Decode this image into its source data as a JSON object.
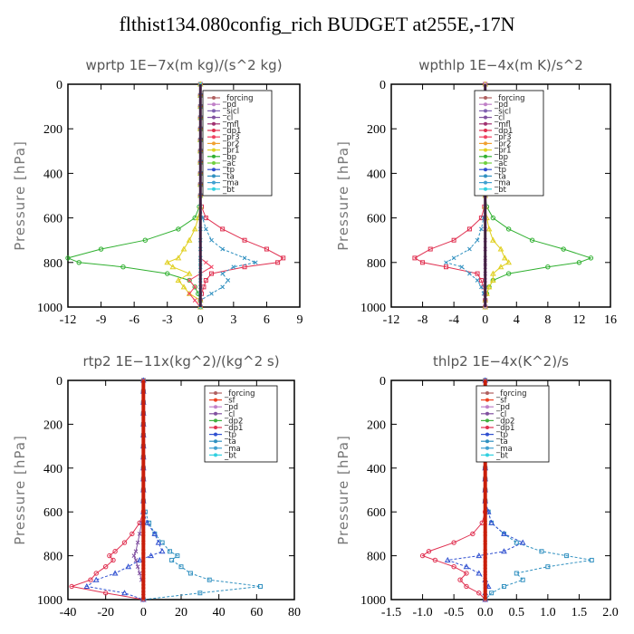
{
  "title": "flthist134.080config_rich  BUDGET at255E,-17N",
  "colors": {
    "_forcing": "#b06060",
    "_pd": "#c080c8",
    "_sicl": "#8060b0",
    "_cl": "#8050a0",
    "_mfl": "#a03070",
    "_dp1": "#e03050",
    "_pr3": "#f04060",
    "_pr2": "#f0a030",
    "_pr1": "#e0d020",
    "_bp": "#30b030",
    "_ac": "#70d040",
    "_tp": "#3050d0",
    "_ta": "#3090c0",
    "_ma": "#40a0d0",
    "_bt": "#30d0e0",
    "_sf": "#f04020",
    "_dp2": "#40b040"
  },
  "chart_data": [
    {
      "type": "line",
      "panel": "wprtp",
      "title": "wprtp   1E−7x(m kg)/(s^2 kg)",
      "ylabel": "Pressure [hPa]",
      "xlim": [
        -12,
        9
      ],
      "xticks": [
        "-12",
        "-9",
        "-6",
        "-3",
        "0",
        "3",
        "6",
        "9"
      ],
      "ylim": [
        1000,
        0
      ],
      "yticks": [
        "0",
        "200",
        "400",
        "600",
        "800",
        "1000"
      ],
      "legend": [
        "_forcing",
        "_pd",
        "_sicl",
        "_cl",
        "_mfl",
        "_dp1",
        "_pr3",
        "_pr2",
        "_pr1",
        "_bp",
        "_ac",
        "_tp",
        "_ta",
        "_ma",
        "_bt"
      ],
      "y": [
        0,
        50,
        100,
        150,
        200,
        250,
        300,
        350,
        400,
        450,
        500,
        550,
        600,
        650,
        700,
        740,
        780,
        800,
        820,
        850,
        880,
        910,
        940,
        970,
        1000
      ],
      "series": [
        {
          "name": "_bp",
          "values": [
            0,
            0,
            0,
            0,
            0,
            0,
            0,
            0,
            0,
            0,
            0,
            -0.1,
            -0.5,
            -2,
            -5,
            -9,
            -12,
            -11,
            -7,
            -3,
            -1,
            -0.5,
            -0.2,
            0,
            0
          ]
        },
        {
          "name": "_dp1",
          "values": [
            0,
            0,
            0,
            0,
            0,
            0,
            0,
            0,
            0,
            0,
            0,
            0.1,
            0.5,
            2,
            4,
            6,
            7.5,
            7,
            4,
            1,
            0.5,
            0.3,
            0.1,
            0,
            0
          ]
        },
        {
          "name": "_pr1",
          "values": [
            0,
            0,
            0,
            0,
            0,
            0,
            0,
            0,
            0,
            0,
            0,
            0,
            -0.2,
            -0.5,
            -1,
            -1.5,
            -2,
            -3,
            -2.5,
            -1,
            -2,
            -1.5,
            -1,
            0,
            0
          ]
        },
        {
          "name": "_ta",
          "values": [
            0,
            0,
            0,
            0,
            0,
            0,
            0,
            0,
            0,
            0,
            0,
            0,
            0.2,
            0.5,
            1,
            2,
            4,
            5,
            3,
            2,
            2.5,
            2,
            1,
            0,
            0
          ]
        },
        {
          "name": "_pr3",
          "values": [
            0,
            0,
            0,
            0,
            0,
            0,
            0,
            0,
            0,
            0,
            0,
            0,
            0,
            0,
            0,
            0,
            0,
            0.5,
            1,
            0,
            -1,
            -0.5,
            -1,
            -0.5,
            0
          ]
        },
        {
          "name": "_bt",
          "values": [
            0,
            0,
            0,
            0,
            0,
            0,
            0,
            0,
            0,
            0,
            0,
            0,
            0,
            0,
            0,
            0,
            0,
            0,
            0,
            0,
            0,
            0,
            0,
            0,
            0
          ]
        }
      ]
    },
    {
      "type": "line",
      "panel": "wpthlp",
      "title": "wpthlp   1E−4x(m K)/s^2",
      "ylabel": "Pressure [hPa]",
      "xlim": [
        -12,
        16
      ],
      "xticks": [
        "-12",
        "-8",
        "-4",
        "0",
        "4",
        "8",
        "12",
        "16"
      ],
      "ylim": [
        1000,
        0
      ],
      "yticks": [
        "0",
        "200",
        "400",
        "600",
        "800",
        "1000"
      ],
      "legend": [
        "_forcing",
        "_pd",
        "_sicl",
        "_cl",
        "_mfl",
        "_dp1",
        "_pr3",
        "_pr2",
        "_pr1",
        "_bp",
        "_ac",
        "_tp",
        "_ta",
        "_ma",
        "_bt"
      ],
      "y": [
        0,
        50,
        100,
        150,
        200,
        250,
        300,
        350,
        400,
        450,
        500,
        550,
        600,
        650,
        700,
        740,
        780,
        800,
        820,
        850,
        880,
        910,
        940,
        970,
        1000
      ],
      "series": [
        {
          "name": "_bp",
          "values": [
            0,
            0,
            0,
            0,
            0,
            0,
            0,
            0,
            0,
            0,
            0,
            0.2,
            1,
            3,
            6,
            10,
            13.5,
            12,
            8,
            3,
            1,
            0.5,
            0.2,
            0,
            0
          ]
        },
        {
          "name": "_dp1",
          "values": [
            0,
            0,
            0,
            0,
            0,
            0,
            0,
            0,
            0,
            0,
            0,
            -0.1,
            -0.5,
            -2,
            -4,
            -7,
            -9,
            -8,
            -5,
            -1,
            -0.5,
            -0.2,
            0,
            0,
            0
          ]
        },
        {
          "name": "_pr1",
          "values": [
            0,
            0,
            0,
            0,
            0,
            0,
            0,
            0,
            0,
            0,
            0,
            0,
            0.2,
            0.5,
            1,
            2,
            2.5,
            3,
            2,
            1,
            1,
            0.5,
            0.2,
            0,
            0
          ]
        },
        {
          "name": "_ta",
          "values": [
            0,
            0,
            0,
            0,
            0,
            0,
            0,
            0,
            0,
            0,
            0,
            0,
            -0.2,
            -0.5,
            -1,
            -2,
            -4,
            -5,
            -3,
            -2,
            -1,
            -0.5,
            -0.2,
            0,
            0
          ]
        },
        {
          "name": "_pd",
          "values": [
            0,
            0,
            0,
            0,
            0,
            0,
            0,
            0,
            0,
            0,
            0,
            0,
            0,
            0,
            0,
            0,
            0,
            0,
            0,
            0,
            0,
            0,
            0,
            0,
            0
          ]
        }
      ]
    },
    {
      "type": "line",
      "panel": "rtp2",
      "title": "rtp2   1E−11x(kg^2)/(kg^2 s)",
      "ylabel": "Pressure [hPa]",
      "xlim": [
        -40,
        80
      ],
      "xticks": [
        "-40",
        "-20",
        "0",
        "20",
        "40",
        "60",
        "80"
      ],
      "ylim": [
        1000,
        0
      ],
      "yticks": [
        "0",
        "200",
        "400",
        "600",
        "800",
        "1000"
      ],
      "legend": [
        "_forcing",
        "_sf",
        "_pd",
        "_cl",
        "_dp2",
        "_dp1",
        "_tp",
        "_ta",
        "_ma",
        "_bt"
      ],
      "y": [
        0,
        50,
        100,
        150,
        200,
        250,
        300,
        350,
        400,
        450,
        500,
        550,
        600,
        650,
        700,
        740,
        780,
        800,
        820,
        850,
        880,
        910,
        940,
        970,
        1000
      ],
      "series": [
        {
          "name": "_dp1",
          "values": [
            0,
            0,
            0,
            0,
            0,
            0,
            0,
            0,
            0,
            0,
            0,
            0,
            0,
            -2,
            -6,
            -10,
            -15,
            -18,
            -16,
            -20,
            -25,
            -28,
            -38,
            -20,
            0
          ]
        },
        {
          "name": "_ta",
          "values": [
            0,
            0,
            0,
            0,
            0,
            0,
            0,
            0,
            0,
            0,
            0,
            0,
            1,
            3,
            6,
            10,
            14,
            18,
            15,
            20,
            25,
            35,
            62,
            30,
            0
          ]
        },
        {
          "name": "_tp",
          "values": [
            0,
            0,
            0,
            0,
            0,
            0,
            0,
            0,
            0,
            0,
            0,
            0,
            0,
            2,
            6,
            8,
            10,
            4,
            -2,
            -8,
            -15,
            -25,
            -30,
            -10,
            0
          ]
        },
        {
          "name": "_cl",
          "values": [
            0,
            0,
            0,
            0,
            0,
            0,
            0,
            0,
            0,
            0,
            0,
            0,
            0,
            -1,
            -2,
            -3,
            -4,
            -5,
            -4,
            -3,
            -2,
            -1,
            0,
            0,
            0
          ]
        },
        {
          "name": "_sf",
          "values": [
            0,
            0,
            0,
            0,
            0,
            0,
            0,
            0,
            0,
            0,
            0,
            0,
            0,
            0,
            0,
            0,
            0,
            0,
            0,
            0,
            0,
            0,
            0,
            0,
            0
          ]
        }
      ]
    },
    {
      "type": "line",
      "panel": "thlp2",
      "title": "thlp2   1E−4x(K^2)/s",
      "ylabel": "Pressure [hPa]",
      "xlim": [
        -1.5,
        2.0
      ],
      "xticks": [
        "-1.5",
        "-1.0",
        "-0.5",
        "0.0",
        "0.5",
        "1.0",
        "1.5",
        "2.0"
      ],
      "ylim": [
        1000,
        0
      ],
      "yticks": [
        "0",
        "200",
        "400",
        "600",
        "800",
        "1000"
      ],
      "legend": [
        "_forcing",
        "_sf",
        "_pd",
        "_cl",
        "_dp2",
        "_dp1",
        "_tp",
        "_ta",
        "_ma",
        "_bt"
      ],
      "y": [
        0,
        50,
        100,
        150,
        200,
        250,
        300,
        350,
        400,
        450,
        500,
        550,
        600,
        650,
        700,
        740,
        780,
        800,
        820,
        850,
        880,
        910,
        940,
        970,
        1000
      ],
      "series": [
        {
          "name": "_dp1",
          "values": [
            0,
            0,
            0,
            0,
            0,
            0,
            0,
            0,
            0,
            0,
            0,
            0,
            0,
            -0.05,
            -0.2,
            -0.5,
            -0.9,
            -1.0,
            -0.8,
            -0.5,
            -0.3,
            -0.4,
            -0.3,
            -0.1,
            0
          ]
        },
        {
          "name": "_ta",
          "values": [
            0,
            0,
            0,
            0,
            0,
            0,
            0,
            0,
            0,
            0,
            0,
            0,
            0.05,
            0.1,
            0.3,
            0.5,
            0.9,
            1.3,
            1.7,
            1.0,
            0.5,
            0.6,
            0.3,
            0.1,
            0
          ]
        },
        {
          "name": "_tp",
          "values": [
            0,
            0,
            0,
            0,
            0,
            0,
            0,
            0,
            0,
            0,
            0,
            0,
            0.05,
            0.1,
            0.3,
            0.6,
            0.3,
            -0.1,
            -0.6,
            -0.3,
            -0.1,
            0,
            0.05,
            0,
            0
          ]
        },
        {
          "name": "_sf",
          "values": [
            0,
            0,
            0,
            0,
            0,
            0,
            0,
            0,
            0,
            0,
            0,
            0,
            0,
            0,
            0,
            0,
            0,
            0,
            0,
            0,
            0,
            0,
            0,
            0,
            0
          ]
        }
      ]
    }
  ]
}
